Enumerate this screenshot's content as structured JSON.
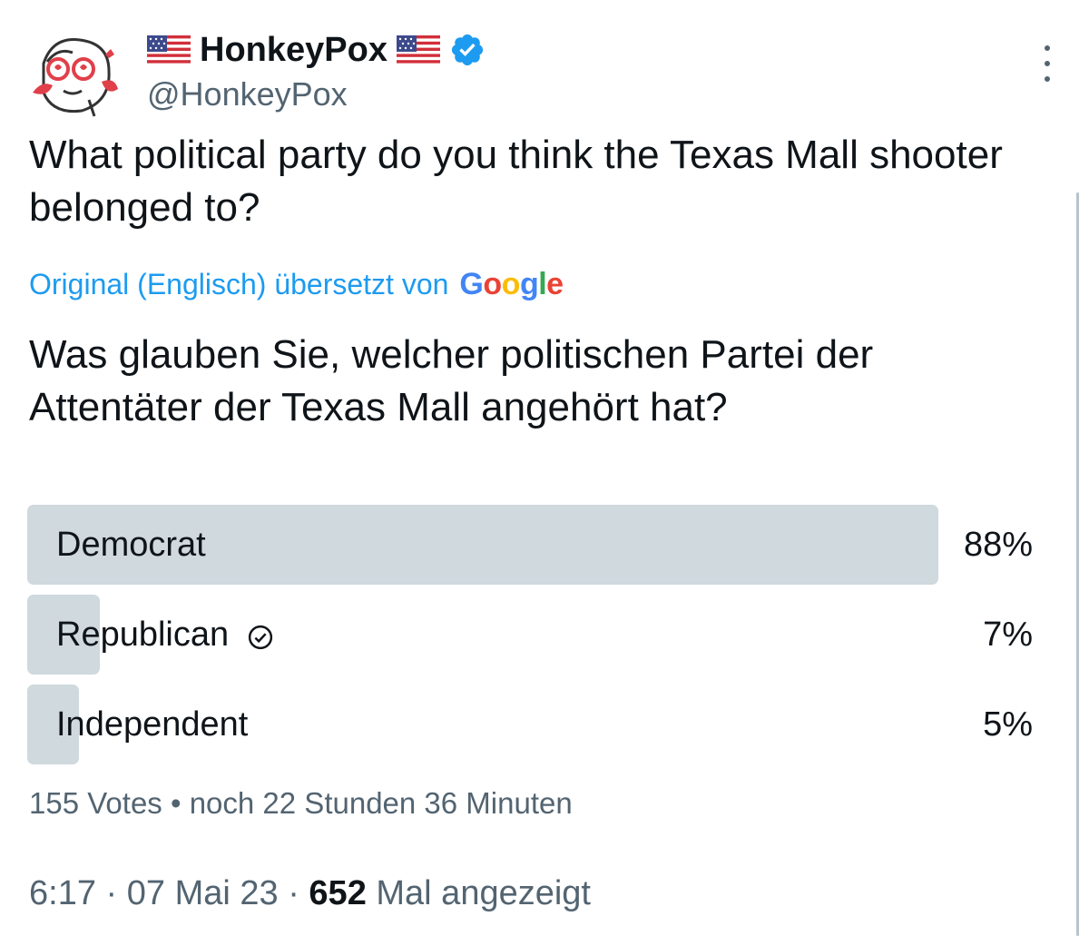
{
  "author": {
    "display_name": "HonkeyPox",
    "handle": "@HonkeyPox",
    "verified": true
  },
  "tweet": {
    "text": "What political party do you think the Texas Mall shooter belonged to?",
    "translation_label": "Original (Englisch) übersetzt von",
    "translation_provider": "Google",
    "translated_text": "Was glauben Sie, welcher politischen Partei der Attentäter der Texas Mall angehört hat?"
  },
  "poll": {
    "options": [
      {
        "label": "Democrat",
        "percent": "88%",
        "value": 88,
        "selected": false
      },
      {
        "label": "Republican",
        "percent": "7%",
        "value": 7,
        "selected": true
      },
      {
        "label": "Independent",
        "percent": "5%",
        "value": 5,
        "selected": false
      }
    ],
    "votes": "155 Votes",
    "separator": "•",
    "time_left": "noch 22 Stunden 36 Minuten"
  },
  "meta": {
    "time": "6:17",
    "date": "07 Mai 23",
    "separator": "·",
    "views_count": "652",
    "views_label": "Mal angezeigt"
  },
  "colors": {
    "accent": "#1d9bf0",
    "poll_bar": "#cfd9de",
    "secondary_text": "#536471",
    "primary_text": "#0f1419"
  },
  "icons": {
    "flag": "us-flag-icon",
    "verified": "verified-badge-icon",
    "more": "more-vertical-icon",
    "vote_check": "check-circle-icon"
  }
}
